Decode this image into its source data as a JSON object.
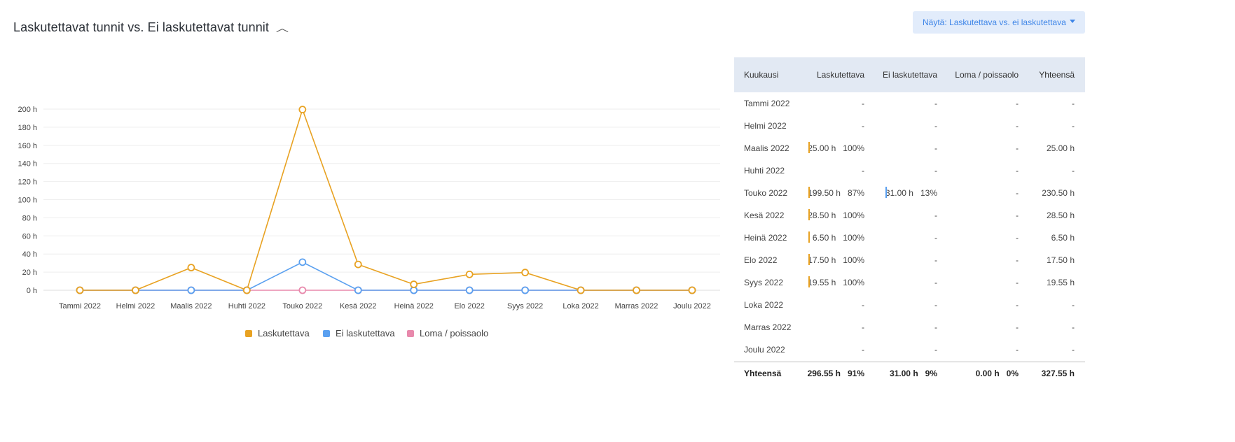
{
  "header": {
    "title": "Laskutettavat tunnit vs. Ei laskutettavat tunnit",
    "view_button_label": "Näytä: Laskutettava vs. ei laskutettava"
  },
  "colors": {
    "billable": "#e8a222",
    "non_billable": "#5aa0f0",
    "leave": "#e889ac"
  },
  "chart_data": {
    "type": "line",
    "categories": [
      "Tammi 2022",
      "Helmi 2022",
      "Maalis 2022",
      "Huhti 2022",
      "Touko 2022",
      "Kesä 2022",
      "Heinä 2022",
      "Elo 2022",
      "Syys 2022",
      "Loka 2022",
      "Marras 2022",
      "Joulu 2022"
    ],
    "y_ticks": [
      0,
      20,
      40,
      60,
      80,
      100,
      120,
      140,
      160,
      180,
      200
    ],
    "y_tick_suffix": " h",
    "ylim": [
      0,
      200
    ],
    "series": [
      {
        "name": "Laskutettava",
        "color": "#e8a222",
        "values": [
          0,
          0,
          25,
          0,
          199.5,
          28.5,
          6.5,
          17.5,
          19.55,
          0,
          0,
          0
        ]
      },
      {
        "name": "Ei laskutettava",
        "color": "#5aa0f0",
        "values": [
          0,
          0,
          0,
          0,
          31,
          0,
          0,
          0,
          0,
          0,
          0,
          0
        ]
      },
      {
        "name": "Loma / poissaolo",
        "color": "#e889ac",
        "values": [
          0,
          0,
          0,
          0,
          0,
          0,
          0,
          0,
          0,
          0,
          0,
          0
        ]
      }
    ],
    "legend": [
      "Laskutettava",
      "Ei laskutettava",
      "Loma / poissaolo"
    ],
    "legend_position": "bottom"
  },
  "table": {
    "headers": [
      "Kuukausi",
      "Laskutettava",
      "Ei laskutettava",
      "Loma / poissaolo",
      "Yhteensä"
    ],
    "rows": [
      {
        "month": "Tammi 2022",
        "billable": "-",
        "billable_pct": "",
        "non_billable": "-",
        "non_billable_pct": "",
        "leave": "-",
        "total": "-"
      },
      {
        "month": "Helmi 2022",
        "billable": "-",
        "billable_pct": "",
        "non_billable": "-",
        "non_billable_pct": "",
        "leave": "-",
        "total": "-"
      },
      {
        "month": "Maalis 2022",
        "billable": "25.00 h",
        "billable_pct": "100%",
        "non_billable": "-",
        "non_billable_pct": "",
        "leave": "-",
        "total": "25.00 h"
      },
      {
        "month": "Huhti 2022",
        "billable": "-",
        "billable_pct": "",
        "non_billable": "-",
        "non_billable_pct": "",
        "leave": "-",
        "total": "-"
      },
      {
        "month": "Touko 2022",
        "billable": "199.50 h",
        "billable_pct": "87%",
        "non_billable": "31.00 h",
        "non_billable_pct": "13%",
        "leave": "-",
        "total": "230.50 h"
      },
      {
        "month": "Kesä 2022",
        "billable": "28.50 h",
        "billable_pct": "100%",
        "non_billable": "-",
        "non_billable_pct": "",
        "leave": "-",
        "total": "28.50 h"
      },
      {
        "month": "Heinä 2022",
        "billable": "6.50 h",
        "billable_pct": "100%",
        "non_billable": "-",
        "non_billable_pct": "",
        "leave": "-",
        "total": "6.50 h"
      },
      {
        "month": "Elo 2022",
        "billable": "17.50 h",
        "billable_pct": "100%",
        "non_billable": "-",
        "non_billable_pct": "",
        "leave": "-",
        "total": "17.50 h"
      },
      {
        "month": "Syys 2022",
        "billable": "19.55 h",
        "billable_pct": "100%",
        "non_billable": "-",
        "non_billable_pct": "",
        "leave": "-",
        "total": "19.55 h"
      },
      {
        "month": "Loka 2022",
        "billable": "-",
        "billable_pct": "",
        "non_billable": "-",
        "non_billable_pct": "",
        "leave": "-",
        "total": "-"
      },
      {
        "month": "Marras 2022",
        "billable": "-",
        "billable_pct": "",
        "non_billable": "-",
        "non_billable_pct": "",
        "leave": "-",
        "total": "-"
      },
      {
        "month": "Joulu 2022",
        "billable": "-",
        "billable_pct": "",
        "non_billable": "-",
        "non_billable_pct": "",
        "leave": "-",
        "total": "-"
      }
    ],
    "footer": {
      "label": "Yhteensä",
      "billable": "296.55 h",
      "billable_pct": "91%",
      "non_billable": "31.00 h",
      "non_billable_pct": "9%",
      "leave": "0.00 h",
      "leave_pct": "0%",
      "total": "327.55 h"
    }
  }
}
